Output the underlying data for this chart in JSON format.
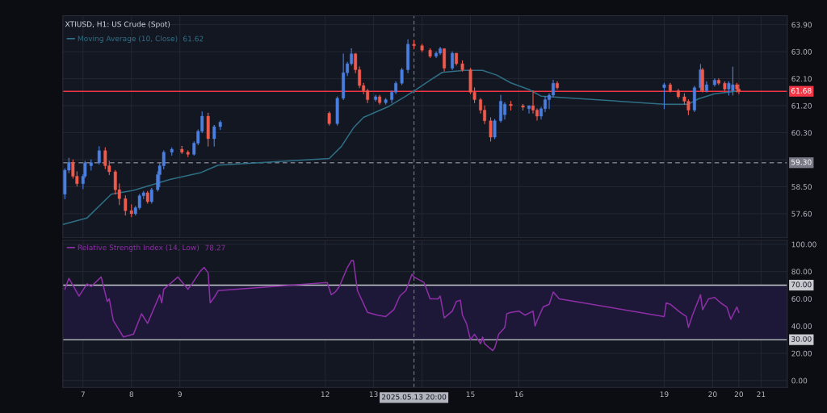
{
  "chart_data": [
    {
      "type": "candlestick",
      "title": "XTIUSD, H1: US Crude (Spot)",
      "legend": "top left",
      "grid": true,
      "tick_labels": "y",
      "x": [
        "2025-05-06T15:00",
        "2025-05-06T17:00",
        "2025-05-06T19:00",
        "2025-05-06T21:00",
        "2025-05-07T00:00",
        "2025-05-07T01:00",
        "2025-05-07T04:00",
        "2025-05-07T08:00",
        "2025-05-07T11:00",
        "2025-05-07T13:00",
        "2025-05-07T16:00",
        "2025-05-07T18:00",
        "2025-05-07T21:00",
        "2025-05-08T00:00",
        "2025-05-08T02:00",
        "2025-05-08T04:00",
        "2025-05-08T06:00",
        "2025-05-08T08:00",
        "2025-05-08T10:00",
        "2025-05-08T13:00",
        "2025-05-08T14:00",
        "2025-05-08T16:00",
        "2025-05-08T20:00",
        "2025-05-09T01:00",
        "2025-05-09T04:00",
        "2025-05-09T07:00",
        "2025-05-09T09:00",
        "2025-05-09T11:00",
        "2025-05-09T14:00",
        "2025-05-09T17:00",
        "2025-05-09T20:00",
        "2025-05-12T02:00",
        "2025-05-12T06:00",
        "2025-05-12T09:00",
        "2025-05-12T11:00",
        "2025-05-12T13:00",
        "2025-05-12T15:00",
        "2025-05-12T17:00",
        "2025-05-12T19:00",
        "2025-05-12T21:00",
        "2025-05-13T01:00",
        "2025-05-13T03:00",
        "2025-05-13T06:00",
        "2025-05-13T09:00",
        "2025-05-13T11:00",
        "2025-05-13T14:00",
        "2025-05-13T17:00",
        "2025-05-13T20:00",
        "2025-05-14T00:00",
        "2025-05-14T04:00",
        "2025-05-14T07:00",
        "2025-05-14T09:00",
        "2025-05-14T11:00",
        "2025-05-14T15:00",
        "2025-05-14T17:00",
        "2025-05-14T20:00",
        "2025-05-15T00:00",
        "2025-05-15T02:00",
        "2025-05-15T05:00",
        "2025-05-15T07:00",
        "2025-05-15T10:00",
        "2025-05-15T12:00",
        "2025-05-15T15:00",
        "2025-05-15T17:00",
        "2025-05-15T20:00",
        "2025-05-16T02:00",
        "2025-05-16T05:00",
        "2025-05-16T07:00",
        "2025-05-16T09:00",
        "2025-05-16T11:00",
        "2025-05-16T13:00",
        "2025-05-16T15:00",
        "2025-05-16T17:00",
        "2025-05-16T19:00",
        "2025-05-19T00:00",
        "2025-05-19T03:00",
        "2025-05-19T07:00",
        "2025-05-19T10:00",
        "2025-05-19T12:00",
        "2025-05-19T15:00",
        "2025-05-19T18:00",
        "2025-05-19T19:00",
        "2025-05-19T21:00",
        "2025-05-20T01:00",
        "2025-05-20T03:00",
        "2025-05-20T06:00",
        "2025-05-20T08:00",
        "2025-05-20T10:00",
        "2025-05-20T12:00",
        "2025-05-20T13:00"
      ],
      "ohlc": [
        [
          58.25,
          59.1,
          58.1,
          59.05
        ],
        [
          59.05,
          59.45,
          58.96,
          59.31
        ],
        [
          59.31,
          59.4,
          58.78,
          58.85
        ],
        [
          58.85,
          59.0,
          58.52,
          58.6
        ],
        [
          58.6,
          58.9,
          58.43,
          58.85
        ],
        [
          58.85,
          59.35,
          58.8,
          59.3
        ],
        [
          59.2,
          59.4,
          59.05,
          59.3
        ],
        [
          59.3,
          59.84,
          59.25,
          59.7
        ],
        [
          59.7,
          59.8,
          59.1,
          59.2
        ],
        [
          59.2,
          59.35,
          58.9,
          59.0
        ],
        [
          59.0,
          59.05,
          58.25,
          58.4
        ],
        [
          58.4,
          58.6,
          57.9,
          58.1
        ],
        [
          58.1,
          58.2,
          57.55,
          57.7
        ],
        [
          57.7,
          57.9,
          57.5,
          57.6
        ],
        [
          57.6,
          57.85,
          57.55,
          57.8
        ],
        [
          57.8,
          58.25,
          57.75,
          58.2
        ],
        [
          58.2,
          58.35,
          58.1,
          58.3
        ],
        [
          58.3,
          58.35,
          57.95,
          58.0
        ],
        [
          58.0,
          58.45,
          57.95,
          58.4
        ],
        [
          58.4,
          59.0,
          58.35,
          58.9
        ],
        [
          58.9,
          59.3,
          58.5,
          59.2
        ],
        [
          59.2,
          59.7,
          59.1,
          59.65
        ],
        [
          59.65,
          59.8,
          59.55,
          59.75
        ],
        [
          59.75,
          59.85,
          59.6,
          59.65
        ],
        [
          59.65,
          59.7,
          59.5,
          59.58
        ],
        [
          59.58,
          60.0,
          59.55,
          59.95
        ],
        [
          59.95,
          60.4,
          59.9,
          60.35
        ],
        [
          60.35,
          61.0,
          60.3,
          60.85
        ],
        [
          60.85,
          60.95,
          59.85,
          60.1
        ],
        [
          60.1,
          60.55,
          59.85,
          60.5
        ],
        [
          60.5,
          60.7,
          60.4,
          60.65
        ],
        [
          60.95,
          61.0,
          60.55,
          60.6
        ],
        [
          60.6,
          61.5,
          60.55,
          61.45
        ],
        [
          61.45,
          62.93,
          61.4,
          62.3
        ],
        [
          62.3,
          62.65,
          62.2,
          62.6
        ],
        [
          62.6,
          63.1,
          62.55,
          62.93
        ],
        [
          62.93,
          62.95,
          62.3,
          62.4
        ],
        [
          62.4,
          62.5,
          61.8,
          61.87
        ],
        [
          61.87,
          61.95,
          61.6,
          61.7
        ],
        [
          61.7,
          61.75,
          61.3,
          61.4
        ],
        [
          61.4,
          61.55,
          61.35,
          61.5
        ],
        [
          61.5,
          61.55,
          61.25,
          61.3
        ],
        [
          61.3,
          61.45,
          61.25,
          61.4
        ],
        [
          61.4,
          61.7,
          61.3,
          61.65
        ],
        [
          61.65,
          62.0,
          61.6,
          61.95
        ],
        [
          61.95,
          62.45,
          61.9,
          62.4
        ],
        [
          62.4,
          63.4,
          62.3,
          63.25
        ],
        [
          63.25,
          63.37,
          63.1,
          63.2
        ],
        [
          63.2,
          63.25,
          63.0,
          63.05
        ],
        [
          63.05,
          63.1,
          62.8,
          62.85
        ],
        [
          62.85,
          63.0,
          62.8,
          62.95
        ],
        [
          62.95,
          63.15,
          62.9,
          63.1
        ],
        [
          63.1,
          63.1,
          62.35,
          62.45
        ],
        [
          62.45,
          63.0,
          62.4,
          62.95
        ],
        [
          62.95,
          62.95,
          62.55,
          62.6
        ],
        [
          62.6,
          62.7,
          62.35,
          62.4
        ],
        [
          62.4,
          62.45,
          61.6,
          61.65
        ],
        [
          61.65,
          61.8,
          61.3,
          61.4
        ],
        [
          61.4,
          61.45,
          60.95,
          61.05
        ],
        [
          61.05,
          61.2,
          60.6,
          60.7
        ],
        [
          60.7,
          60.8,
          60.02,
          60.15
        ],
        [
          60.15,
          60.75,
          60.1,
          60.7
        ],
        [
          60.7,
          61.55,
          60.65,
          61.35
        ],
        [
          60.9,
          61.3,
          60.75,
          61.25
        ],
        [
          61.25,
          61.35,
          61.05,
          61.2
        ],
        [
          61.2,
          61.25,
          61.05,
          61.15
        ],
        [
          61.1,
          61.2,
          60.95,
          61.2
        ],
        [
          61.2,
          61.7,
          60.95,
          61.05
        ],
        [
          61.05,
          61.1,
          60.72,
          60.85
        ],
        [
          60.85,
          61.15,
          60.75,
          61.1
        ],
        [
          61.1,
          61.5,
          61.0,
          61.4
        ],
        [
          61.4,
          61.6,
          61.1,
          61.55
        ],
        [
          61.55,
          62.05,
          61.5,
          61.95
        ],
        [
          61.95,
          62.0,
          61.75,
          61.8
        ],
        [
          61.8,
          61.95,
          61.1,
          61.9
        ],
        [
          61.9,
          61.95,
          61.65,
          61.7
        ],
        [
          61.7,
          61.75,
          61.45,
          61.5
        ],
        [
          61.5,
          61.6,
          61.25,
          61.35
        ],
        [
          61.35,
          61.4,
          60.9,
          61.05
        ],
        [
          61.05,
          61.85,
          61.0,
          61.8
        ],
        [
          61.8,
          62.58,
          61.7,
          62.4
        ],
        [
          62.4,
          62.45,
          61.65,
          61.7
        ],
        [
          61.7,
          62.0,
          61.65,
          61.9
        ],
        [
          61.9,
          62.1,
          61.85,
          62.05
        ],
        [
          62.05,
          62.1,
          61.9,
          61.95
        ],
        [
          61.95,
          62.0,
          61.7,
          61.75
        ],
        [
          61.75,
          62.0,
          61.55,
          61.95
        ],
        [
          61.7,
          62.49,
          61.55,
          61.9
        ],
        [
          61.9,
          61.95,
          61.65,
          61.75
        ],
        [
          61.75,
          61.9,
          61.6,
          61.68
        ]
      ],
      "series": [
        {
          "type": "line",
          "name": "Moving Average (10, Close)",
          "color": "#2f6f86",
          "x": [
            "2025-05-06T14:00",
            "2025-05-07T02:00",
            "2025-05-07T14:00",
            "2025-05-08T01:00",
            "2025-05-08T10:00",
            "2025-05-08T19:00",
            "2025-05-09T10:00",
            "2025-05-09T19:00",
            "2025-05-12T02:00",
            "2025-05-12T08:00",
            "2025-05-12T14:00",
            "2025-05-12T19:00",
            "2025-05-13T07:00",
            "2025-05-13T16:00",
            "2025-05-13T20:00",
            "2025-05-14T04:00",
            "2025-05-14T10:00",
            "2025-05-14T21:00",
            "2025-05-15T06:00",
            "2025-05-15T13:00",
            "2025-05-15T20:00",
            "2025-05-16T05:00",
            "2025-05-16T11:00",
            "2025-05-19T00:00",
            "2025-05-19T12:00",
            "2025-05-19T17:00",
            "2025-05-20T01:00",
            "2025-05-20T13:00"
          ],
          "values": [
            57.24,
            57.46,
            58.25,
            58.38,
            58.56,
            58.74,
            58.96,
            59.22,
            59.44,
            59.84,
            60.46,
            60.81,
            61.16,
            61.52,
            61.69,
            62.05,
            62.31,
            62.38,
            62.38,
            62.22,
            61.96,
            61.74,
            61.52,
            61.25,
            61.25,
            61.43,
            61.6,
            61.69
          ]
        }
      ],
      "annotations": [
        "61.62"
      ],
      "xlim": [
        "2025-05-06T14:00",
        "2025-05-21T13:00"
      ],
      "xticks": [
        "2025-05-07",
        "2025-05-08",
        "2025-05-09",
        "2025-05-12",
        "2025-05-13",
        "2025-05-14",
        "2025-05-15",
        "2025-05-16",
        "2025-05-19",
        "2025-05-20",
        "2025-05-20T13:00",
        "2025-05-21"
      ],
      "ylim": [
        56.8,
        64.2
      ],
      "yticks": [
        {
          "value": 57.6,
          "label": "57.60"
        },
        {
          "value": 58.5,
          "label": "58.50"
        },
        {
          "value": 59.4,
          "label": null
        },
        {
          "value": 60.3,
          "label": "60.30"
        },
        {
          "value": 61.2,
          "label": "61.20"
        },
        {
          "value": 62.1,
          "label": "62.10"
        },
        {
          "value": 63.0,
          "label": "63.00"
        },
        {
          "value": 63.9,
          "label": "63.90"
        }
      ],
      "ref_lines": [
        {
          "axis": "y",
          "value": 61.68,
          "label": "61.68",
          "color": "#f23645",
          "line_style": "solid"
        },
        {
          "axis": "y",
          "value": 59.3,
          "label": "59.30",
          "color": "#787b86",
          "line_style": "dashed"
        },
        {
          "axis": "x",
          "value": "2025-05-13T20:00",
          "color": "#787b86",
          "line_style": "dashed"
        }
      ]
    },
    {
      "type": "line",
      "legend": "top left",
      "grid": true,
      "series": [
        {
          "name": "Relative Strength Index (14, Low)",
          "color": "#8e2fa8",
          "x": [
            "2025-05-06T15:00",
            "2025-05-06T17:00",
            "2025-05-06T19:00",
            "2025-05-06T22:00",
            "2025-05-07T02:00",
            "2025-05-07T04:00",
            "2025-05-07T09:00",
            "2025-05-07T12:00",
            "2025-05-07T13:00",
            "2025-05-07T15:00",
            "2025-05-07T20:00",
            "2025-05-08T01:00",
            "2025-05-08T05:00",
            "2025-05-08T08:00",
            "2025-05-08T12:00",
            "2025-05-08T14:00",
            "2025-05-08T15:00",
            "2025-05-08T16:00",
            "2025-05-08T23:00",
            "2025-05-09T04:00",
            "2025-05-09T06:00",
            "2025-05-09T10:00",
            "2025-05-09T12:00",
            "2025-05-09T14:00",
            "2025-05-09T15:00",
            "2025-05-09T17:00",
            "2025-05-09T19:00",
            "2025-05-12T01:00",
            "2025-05-12T03:00",
            "2025-05-12T05:00",
            "2025-05-12T07:00",
            "2025-05-12T11:00",
            "2025-05-12T13:00",
            "2025-05-12T14:00",
            "2025-05-12T16:00",
            "2025-05-12T21:00",
            "2025-05-13T02:00",
            "2025-05-13T06:00",
            "2025-05-13T10:00",
            "2025-05-13T13:00",
            "2025-05-13T16:00",
            "2025-05-13T19:00",
            "2025-05-13T20:00",
            "2025-05-14T01:00",
            "2025-05-14T04:00",
            "2025-05-14T08:00",
            "2025-05-14T09:00",
            "2025-05-14T11:00",
            "2025-05-14T15:00",
            "2025-05-14T17:00",
            "2025-05-14T19:00",
            "2025-05-14T20:00",
            "2025-05-14T22:00",
            "2025-05-15T00:00",
            "2025-05-15T02:00",
            "2025-05-15T05:00",
            "2025-05-15T06:00",
            "2025-05-15T07:00",
            "2025-05-15T11:00",
            "2025-05-15T12:00",
            "2025-05-15T14:00",
            "2025-05-15T17:00",
            "2025-05-15T18:00",
            "2025-05-15T20:00",
            "2025-05-16T00:00",
            "2025-05-16T03:00",
            "2025-05-16T07:00",
            "2025-05-16T08:00",
            "2025-05-16T09:00",
            "2025-05-16T12:00",
            "2025-05-16T15:00",
            "2025-05-16T17:00",
            "2025-05-16T20:00",
            "2025-05-19T00:00",
            "2025-05-19T01:00",
            "2025-05-19T03:00",
            "2025-05-19T08:00",
            "2025-05-19T11:00",
            "2025-05-19T12:00",
            "2025-05-19T14:00",
            "2025-05-19T18:00",
            "2025-05-19T19:00",
            "2025-05-19T22:00",
            "2025-05-20T01:00",
            "2025-05-20T04:00",
            "2025-05-20T07:00",
            "2025-05-20T09:00",
            "2025-05-20T12:00",
            "2025-05-20T13:00"
          ],
          "values": [
            67,
            75,
            70,
            62,
            71,
            69,
            76,
            58,
            60,
            44,
            32,
            34,
            49,
            42,
            56,
            63,
            57,
            67,
            76,
            67,
            71,
            80,
            83,
            79,
            57,
            61,
            66,
            72,
            63,
            65,
            69,
            83,
            88,
            88,
            66,
            50,
            48,
            47,
            52,
            62,
            66,
            78,
            76,
            72,
            60,
            60,
            62,
            46,
            51,
            58,
            59,
            48,
            42,
            30,
            34,
            27,
            32,
            27,
            22,
            24,
            34,
            39,
            49,
            50,
            51,
            48,
            51,
            40,
            44,
            54,
            56,
            65,
            60,
            47,
            57,
            56,
            50,
            47,
            39,
            48,
            63,
            52,
            60,
            61,
            57,
            54,
            45,
            54,
            50
          ]
        }
      ],
      "annotations": [
        "78.27"
      ],
      "xlim": [
        "2025-05-06T14:00",
        "2025-05-21T13:00"
      ],
      "xticks": [
        {
          "value": "2025-05-07",
          "label": "7"
        },
        {
          "value": "2025-05-08",
          "label": "8"
        },
        {
          "value": "2025-05-09",
          "label": "9"
        },
        {
          "value": "2025-05-12",
          "label": "12"
        },
        {
          "value": "2025-05-13",
          "label": "13"
        },
        {
          "value": "2025-05-14",
          "label": null
        },
        {
          "value": "2025-05-15",
          "label": "15"
        },
        {
          "value": "2025-05-16",
          "label": "16"
        },
        {
          "value": "2025-05-19",
          "label": "19"
        },
        {
          "value": "2025-05-20",
          "label": "20"
        },
        {
          "value": "2025-05-20T13:00",
          "label": "20"
        },
        {
          "value": "2025-05-21",
          "label": "21"
        }
      ],
      "ylim": [
        -5,
        103
      ],
      "yticks": [
        {
          "value": 0,
          "label": "0.00"
        },
        {
          "value": 20,
          "label": "20.00"
        },
        {
          "value": 40,
          "label": "40.00"
        },
        {
          "value": 60,
          "label": "60.00"
        },
        {
          "value": 80,
          "label": "80.00"
        },
        {
          "value": 100,
          "label": "100.00"
        }
      ],
      "bands": [
        {
          "axis": "y",
          "from": 30,
          "to": 70,
          "color": "#1e1838"
        }
      ],
      "ref_lines": [
        {
          "axis": "y",
          "value": 70,
          "label": "70.00",
          "color": "#c8cad0",
          "line_style": "solid"
        },
        {
          "axis": "y",
          "value": 30,
          "label": "30.00",
          "color": "#c8cad0",
          "line_style": "solid"
        },
        {
          "axis": "x",
          "value": "2025-05-13T20:00",
          "label": "2025.05.13 20:00",
          "color": "#787b86",
          "line_style": "dashed"
        }
      ]
    }
  ]
}
